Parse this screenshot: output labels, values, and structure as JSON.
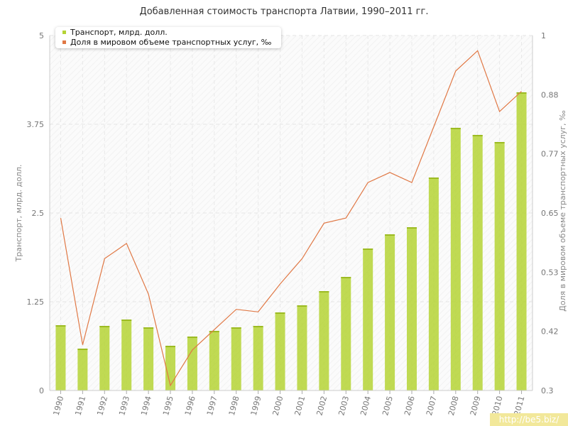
{
  "chart_data": {
    "type": "bar+line",
    "title": "Добавленная стоимость транспорта Латвии, 1990–2011 гг.",
    "categories": [
      "1990",
      "1991",
      "1992",
      "1993",
      "1994",
      "1995",
      "1996",
      "1997",
      "1998",
      "1999",
      "2000",
      "2001",
      "2002",
      "2003",
      "2004",
      "2005",
      "2006",
      "2007",
      "2008",
      "2009",
      "2010",
      "2011"
    ],
    "series": [
      {
        "name": "Транспорт, млрд. долл.",
        "type": "bar",
        "axis": "left",
        "color": "#b5d335",
        "values": [
          0.92,
          0.59,
          0.91,
          1.0,
          0.89,
          0.63,
          0.76,
          0.84,
          0.89,
          0.91,
          1.1,
          1.2,
          1.4,
          1.6,
          2.0,
          2.2,
          2.3,
          3.0,
          3.7,
          3.6,
          3.5,
          4.2
        ]
      },
      {
        "name": "Доля в мировом объеме транспортных услуг, ‰",
        "type": "line",
        "axis": "right",
        "color": "#e07845",
        "values": [
          0.64,
          0.39,
          0.56,
          0.59,
          0.49,
          0.31,
          0.38,
          0.42,
          0.46,
          0.455,
          0.51,
          0.56,
          0.63,
          0.64,
          0.71,
          0.73,
          0.71,
          0.82,
          0.93,
          0.97,
          0.85,
          0.89
        ]
      }
    ],
    "ylabel": "Транспорт, млрд. долл.",
    "y2label": "Доля в мировом объеме транспортных услуг, ‰",
    "ylim": [
      0,
      5
    ],
    "y2lim": [
      0.3,
      1
    ],
    "yticks": [
      "0",
      "1.25",
      "2.5",
      "3.75",
      "5"
    ],
    "y2ticks": [
      "0.3",
      "0.42",
      "0.53",
      "0.65",
      "0.77",
      "0.88",
      "1"
    ],
    "grid": true,
    "legend_position": "top-left"
  },
  "watermark": "http://be5.biz/"
}
